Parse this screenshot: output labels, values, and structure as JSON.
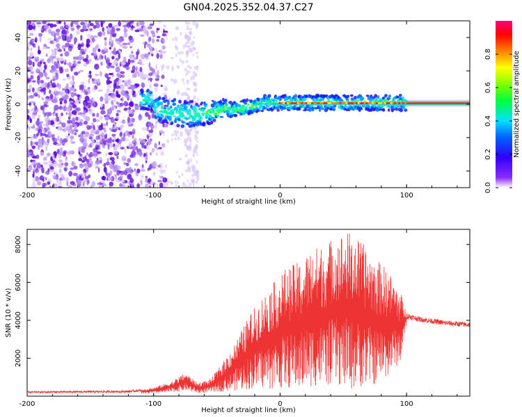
{
  "title": "GN04.2025.352.04.37.C27",
  "chart_data": [
    {
      "type": "heatmap",
      "name": "spectrogram",
      "xlabel": "Height of straight line (km)",
      "ylabel": "Frequency (Hz)",
      "xlim": [
        -200,
        150
      ],
      "ylim": [
        -50,
        50
      ],
      "x_ticks": [
        -200,
        -100,
        0,
        100
      ],
      "x_tick_labels": [
        "-200",
        "-100",
        "0",
        "100"
      ],
      "y_ticks": [
        -40,
        -20,
        0,
        20,
        40
      ],
      "y_tick_labels": [
        "-40",
        "-20",
        "0",
        "20",
        "40"
      ],
      "colorbar": {
        "label": "Normalized spectral amplitude",
        "range": [
          0,
          1
        ],
        "ticks": [
          0.0,
          0.2,
          0.4,
          0.6,
          0.8
        ],
        "tick_labels": [
          "0.0",
          "0.2",
          "0.4",
          "0.6",
          "0.8"
        ],
        "colors": [
          "#ffffff",
          "#6a00ff",
          "#0000ff",
          "#00ffff",
          "#00ff00",
          "#ffff00",
          "#ff8000",
          "#ff0000",
          "#ff0080"
        ]
      },
      "description_points": {
        "noise_region_x": [
          -200,
          -105
        ],
        "gap_x": [
          -95,
          -75
        ],
        "signal_center_freq": 0,
        "strong_line_x": [
          0,
          150
        ]
      }
    },
    {
      "type": "line",
      "name": "snr",
      "xlabel": "Height of straight line (km)",
      "ylabel": "SNR (10 * v/v)",
      "xlim": [
        -200,
        150
      ],
      "ylim": [
        0,
        8800
      ],
      "x_ticks": [
        -200,
        -100,
        0,
        100
      ],
      "x_tick_labels": [
        "-200",
        "-100",
        "0",
        "100"
      ],
      "y_ticks": [
        2000,
        4000,
        6000,
        8000
      ],
      "y_tick_labels": [
        "2000",
        "4000",
        "6000",
        "8000"
      ],
      "color": "#ee3333",
      "envelope": {
        "x": [
          -200,
          -120,
          -100,
          -85,
          -75,
          -65,
          -55,
          -45,
          -35,
          -25,
          -15,
          -5,
          5,
          15,
          25,
          35,
          45,
          55,
          65,
          75,
          85,
          95,
          100,
          110,
          130,
          150
        ],
        "max": [
          250,
          300,
          450,
          800,
          1250,
          700,
          900,
          1800,
          2900,
          4200,
          5200,
          6000,
          6800,
          7100,
          7800,
          8000,
          8600,
          8700,
          8100,
          7300,
          6700,
          5600,
          4400,
          4200,
          4000,
          3900
        ],
        "min": [
          100,
          100,
          150,
          200,
          300,
          150,
          200,
          250,
          300,
          350,
          400,
          350,
          400,
          300,
          500,
          500,
          600,
          300,
          500,
          600,
          1000,
          1800,
          3800,
          3700,
          3500,
          3400
        ]
      }
    }
  ]
}
